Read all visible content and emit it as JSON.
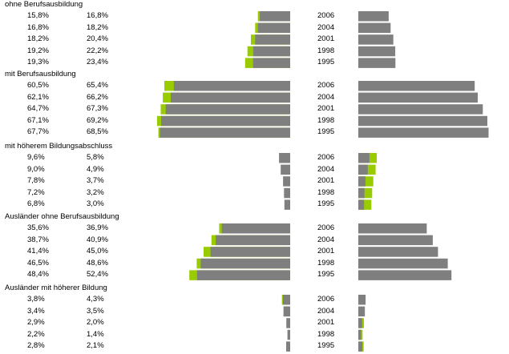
{
  "chart_data": {
    "type": "bar",
    "colors": {
      "bar": "#7f7f7f",
      "highlight": "#99cc00",
      "background": "#ffffff"
    },
    "groups": [
      {
        "title": "ohne Berufsausbildung",
        "rows": [
          {
            "year": "2006",
            "v1": "15,8%",
            "v2": "16,8%",
            "left_value": 15.8,
            "left_extra": 16.8,
            "right_value": 15.8,
            "right_extra": null
          },
          {
            "year": "2004",
            "v1": "16,8%",
            "v2": "18,2%",
            "left_value": 16.8,
            "left_extra": 18.2,
            "right_value": 16.8,
            "right_extra": null
          },
          {
            "year": "2001",
            "v1": "18,2%",
            "v2": "20,4%",
            "left_value": 18.2,
            "left_extra": 20.4,
            "right_value": 18.2,
            "right_extra": null
          },
          {
            "year": "1998",
            "v1": "19,2%",
            "v2": "22,2%",
            "left_value": 19.2,
            "left_extra": 22.2,
            "right_value": 19.2,
            "right_extra": null
          },
          {
            "year": "1995",
            "v1": "19,3%",
            "v2": "23,4%",
            "left_value": 19.3,
            "left_extra": 23.4,
            "right_value": 19.3,
            "right_extra": null
          }
        ]
      },
      {
        "title": "mit Berufsausbildung",
        "rows": [
          {
            "year": "2006",
            "v1": "60,5%",
            "v2": "65,4%",
            "left_value": 60.5,
            "left_extra": 65.4,
            "right_value": 60.5,
            "right_extra": null
          },
          {
            "year": "2004",
            "v1": "62,1%",
            "v2": "66,2%",
            "left_value": 62.1,
            "left_extra": 66.2,
            "right_value": 62.1,
            "right_extra": null
          },
          {
            "year": "2001",
            "v1": "64,7%",
            "v2": "67,3%",
            "left_value": 64.7,
            "left_extra": 67.3,
            "right_value": 64.7,
            "right_extra": null
          },
          {
            "year": "1998",
            "v1": "67,1%",
            "v2": "69,2%",
            "left_value": 67.1,
            "left_extra": 69.2,
            "right_value": 67.1,
            "right_extra": null
          },
          {
            "year": "1995",
            "v1": "67,7%",
            "v2": "68,5%",
            "left_value": 67.7,
            "left_extra": 68.5,
            "right_value": 67.7,
            "right_extra": null
          }
        ]
      },
      {
        "title": "mit höherem Bildungsabschluss",
        "rows": [
          {
            "year": "2006",
            "v1": "9,6%",
            "v2": "5,8%",
            "left_value": 5.8,
            "left_extra": null,
            "right_value": 5.8,
            "right_extra": 9.6
          },
          {
            "year": "2004",
            "v1": "9,0%",
            "v2": "4,9%",
            "left_value": 4.9,
            "left_extra": null,
            "right_value": 4.9,
            "right_extra": 9.0
          },
          {
            "year": "2001",
            "v1": "7,8%",
            "v2": "3,7%",
            "left_value": 3.7,
            "left_extra": null,
            "right_value": 3.7,
            "right_extra": 7.8
          },
          {
            "year": "1998",
            "v1": "7,2%",
            "v2": "3,2%",
            "left_value": 3.2,
            "left_extra": null,
            "right_value": 3.2,
            "right_extra": 7.2
          },
          {
            "year": "1995",
            "v1": "6,8%",
            "v2": "3,0%",
            "left_value": 3.0,
            "left_extra": null,
            "right_value": 3.0,
            "right_extra": 6.8
          }
        ]
      },
      {
        "title": "Ausländer ohne Berufsausbildung",
        "rows": [
          {
            "year": "2006",
            "v1": "35,6%",
            "v2": "36,9%",
            "left_value": 35.6,
            "left_extra": 36.9,
            "right_value": 35.6,
            "right_extra": null
          },
          {
            "year": "2004",
            "v1": "38,7%",
            "v2": "40,9%",
            "left_value": 38.7,
            "left_extra": 40.9,
            "right_value": 38.7,
            "right_extra": null
          },
          {
            "year": "2001",
            "v1": "41,4%",
            "v2": "45,0%",
            "left_value": 41.4,
            "left_extra": 45.0,
            "right_value": 41.4,
            "right_extra": null
          },
          {
            "year": "1998",
            "v1": "46,5%",
            "v2": "48,6%",
            "left_value": 46.5,
            "left_extra": 48.6,
            "right_value": 46.5,
            "right_extra": null
          },
          {
            "year": "1995",
            "v1": "48,4%",
            "v2": "52,4%",
            "left_value": 48.4,
            "left_extra": 52.4,
            "right_value": 48.4,
            "right_extra": null
          }
        ]
      },
      {
        "title": "Ausländer mit höherer Bildung",
        "rows": [
          {
            "year": "2006",
            "v1": "3,8%",
            "v2": "4,3%",
            "left_value": 3.8,
            "left_extra": 4.3,
            "right_value": 3.8,
            "right_extra": null
          },
          {
            "year": "2004",
            "v1": "3,4%",
            "v2": "3,5%",
            "left_value": 3.4,
            "left_extra": 3.5,
            "right_value": 3.4,
            "right_extra": null
          },
          {
            "year": "2001",
            "v1": "2,9%",
            "v2": "2,0%",
            "left_value": 2.0,
            "left_extra": null,
            "right_value": 2.0,
            "right_extra": 2.9
          },
          {
            "year": "1998",
            "v1": "2,2%",
            "v2": "1,4%",
            "left_value": 1.4,
            "left_extra": null,
            "right_value": 1.4,
            "right_extra": 2.2
          },
          {
            "year": "1995",
            "v1": "2,8%",
            "v2": "2,1%",
            "left_value": 2.1,
            "left_extra": null,
            "right_value": 2.1,
            "right_extra": 2.8
          }
        ]
      }
    ]
  }
}
